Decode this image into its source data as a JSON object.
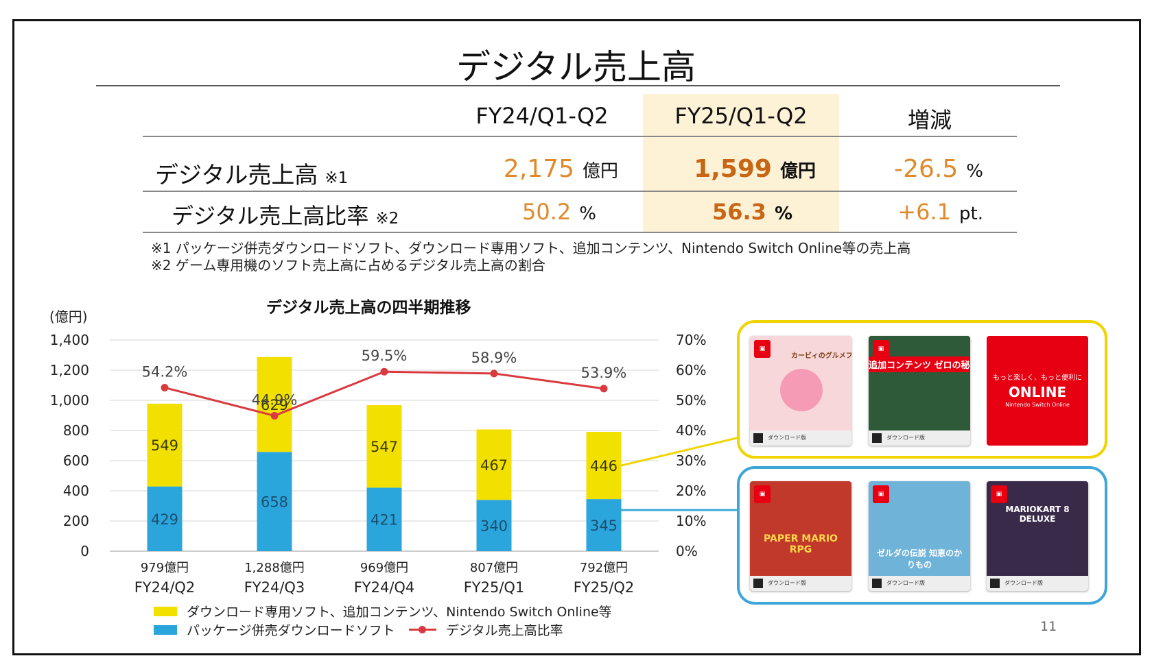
{
  "slide": {
    "title": "デジタル売上高",
    "page_number": "11"
  },
  "summary_table": {
    "headers": [
      "FY24/Q1-Q2",
      "FY25/Q1-Q2",
      "増減"
    ],
    "rows": [
      {
        "label": "デジタル売上高",
        "note": "※1",
        "fy24_value": "2,175",
        "fy24_unit": "億円",
        "fy25_value": "1,599",
        "fy25_unit": "億円",
        "change_value": "-26.5",
        "change_unit": "%"
      },
      {
        "label": "デジタル売上高比率",
        "note": "※2",
        "fy24_value": "50.2",
        "fy24_unit": "%",
        "fy25_value": "56.3",
        "fy25_unit": "%",
        "change_value": "+6.1",
        "change_unit": "pt."
      }
    ],
    "footnotes": [
      "※1 パッケージ併売ダウンロードソフト、ダウンロード専用ソフト、追加コンテンツ、Nintendo Switch Online等の売上高",
      "※2 ゲーム専用機のソフト売上高に占めるデジタル売上高の割合"
    ]
  },
  "chart_data": {
    "type": "bar",
    "stacked": true,
    "title": "デジタル売上高の四半期推移",
    "y_unit_label": "(億円)",
    "categories": [
      "FY24/Q2",
      "FY24/Q3",
      "FY24/Q4",
      "FY25/Q1",
      "FY25/Q2"
    ],
    "totals": [
      "979億円",
      "1,288億円",
      "969億円",
      "807億円",
      "792億円"
    ],
    "series": [
      {
        "name": "パッケージ併売ダウンロードソフト",
        "color": "#2aa6dc",
        "values": [
          429,
          658,
          421,
          340,
          345
        ]
      },
      {
        "name": "ダウンロード専用ソフト、追加コンテンツ、Nintendo Switch Online等",
        "color": "#f2e000",
        "values": [
          549,
          629,
          547,
          467,
          446
        ]
      }
    ],
    "line_series": {
      "name": "デジタル売上高比率",
      "color": "#d93a3f",
      "values": [
        54.2,
        44.9,
        59.5,
        58.9,
        53.9
      ],
      "labels": [
        "54.2%",
        "44.9%",
        "59.5%",
        "58.9%",
        "53.9%"
      ]
    },
    "ylim": [
      0,
      1400
    ],
    "yticks": [
      "0",
      "200",
      "400",
      "600",
      "800",
      "1,000",
      "1,200",
      "1,400"
    ],
    "y2lim": [
      0,
      70
    ],
    "y2ticks": [
      "0%",
      "10%",
      "20%",
      "30%",
      "40%",
      "50%",
      "60%",
      "70%"
    ],
    "grid": true,
    "legend_position": "bottom-left"
  },
  "product_images": {
    "download_only_cards": [
      {
        "title": "カービィのグルメフェス",
        "bg": "#f7d7d9"
      },
      {
        "title": "追加コンテンツ ゼロの秘宝",
        "bg": "#2f5a3a"
      },
      {
        "title": "ONLINE",
        "tagline": "もっと楽しく、もっと便利に",
        "subtitle": "Nintendo Switch Online",
        "bg": "#e60012"
      }
    ],
    "package_cards": [
      {
        "title": "PAPER MARIO RPG",
        "bg": "#c0392b"
      },
      {
        "title": "ゼルダの伝説 知恵のかりもの",
        "bg": "#6fb3d9"
      },
      {
        "title": "MARIOKART 8 DELUXE",
        "bg": "#3a2a4a"
      }
    ],
    "yellow_frame_color": "#f0d400",
    "blue_frame_color": "#3ea7d8"
  }
}
